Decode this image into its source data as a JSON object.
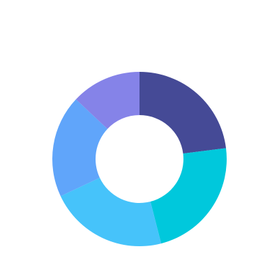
{
  "chart_data": {
    "type": "donut",
    "values": [
      23,
      23,
      22,
      19,
      13
    ],
    "colors": [
      "#454a96",
      "#00c8dc",
      "#46c3fa",
      "#60a5fa",
      "#8583e8"
    ]
  }
}
